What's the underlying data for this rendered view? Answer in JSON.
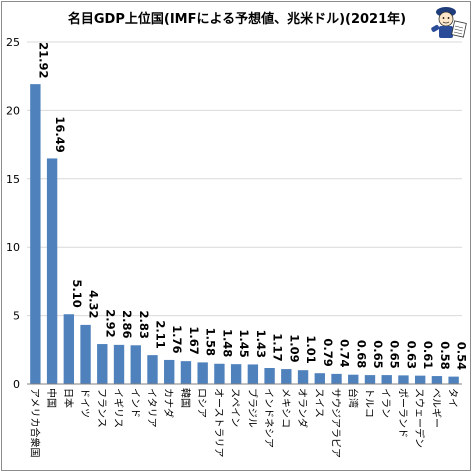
{
  "chart_data": {
    "type": "bar",
    "title": "名目GDP上位国(IMFによる予想値、兆米ドル)(2021年)",
    "categories": [
      "アメリカ合衆国",
      "中国",
      "日本",
      "ドイツ",
      "フランス",
      "イギリス",
      "インド",
      "イタリア",
      "カナダ",
      "韓国",
      "ロシア",
      "オーストラリア",
      "スペイン",
      "ブラジル",
      "インドネシア",
      "メキシコ",
      "オランダ",
      "スイス",
      "サウジアラビア",
      "台湾",
      "トルコ",
      "イラン",
      "ポーランド",
      "スウェーデン",
      "ベルギー",
      "タイ"
    ],
    "values": [
      21.92,
      16.49,
      5.1,
      4.32,
      2.92,
      2.86,
      2.83,
      2.11,
      1.76,
      1.67,
      1.58,
      1.48,
      1.45,
      1.43,
      1.17,
      1.09,
      1.01,
      0.79,
      0.74,
      0.68,
      0.65,
      0.65,
      0.63,
      0.61,
      0.58,
      0.54
    ],
    "value_labels": [
      "21.92",
      "16.49",
      "5.10",
      "4.32",
      "2.92",
      "2.86",
      "2.83",
      "2.11",
      "1.76",
      "1.67",
      "1.58",
      "1.48",
      "1.45",
      "1.43",
      "1.17",
      "1.09",
      "1.01",
      "0.79",
      "0.74",
      "0.68",
      "0.65",
      "0.65",
      "0.63",
      "0.61",
      "0.58",
      "0.54"
    ],
    "ylim": [
      0,
      25
    ],
    "yticks": [
      "0",
      "5",
      "10",
      "15",
      "20",
      "25"
    ],
    "grid": true,
    "legend": "none",
    "bar_color": "#4f81bd",
    "grid_color": "#d9d9d9"
  },
  "mascot_icon": "newspaper-boy-icon"
}
